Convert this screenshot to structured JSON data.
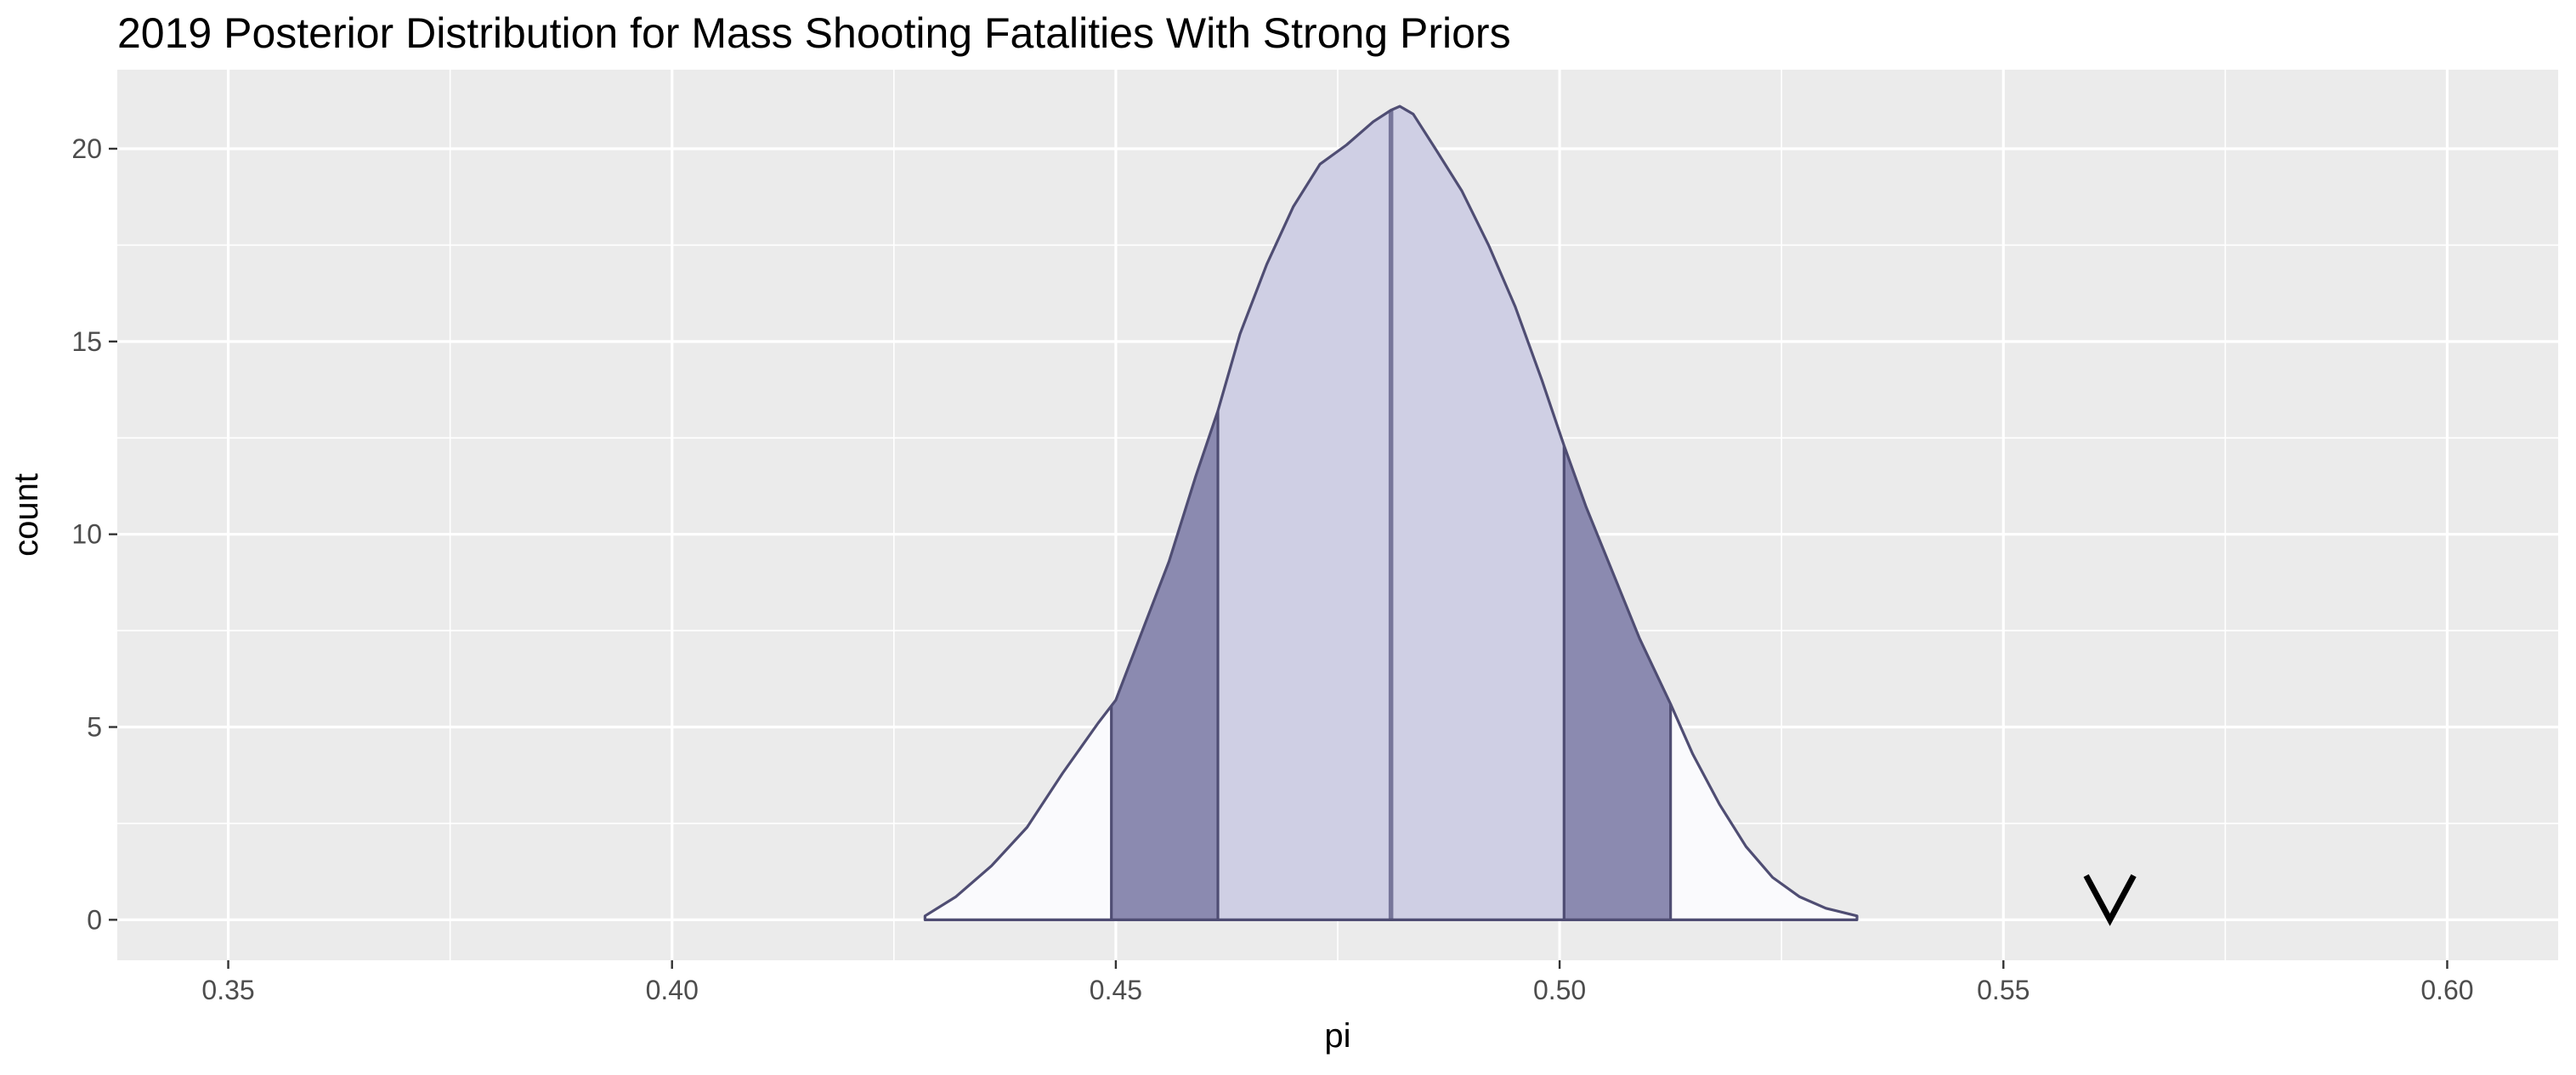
{
  "chart_data": {
    "type": "area",
    "title": "2019 Posterior Distribution for Mass Shooting Fatalities With Strong Priors",
    "xlabel": "pi",
    "ylabel": "count",
    "xlim": [
      0.3375,
      0.6125
    ],
    "ylim": [
      -1.05,
      22.05
    ],
    "x_ticks": [
      0.35,
      0.4,
      0.45,
      0.5,
      0.55,
      0.6
    ],
    "x_tick_labels": [
      "0.35",
      "0.40",
      "0.45",
      "0.50",
      "0.55",
      "0.60"
    ],
    "y_ticks": [
      0,
      5,
      10,
      15,
      20
    ],
    "y_tick_labels": [
      "0",
      "5",
      "10",
      "15",
      "20"
    ],
    "grid": true,
    "density": {
      "x": [
        0.4285,
        0.432,
        0.436,
        0.44,
        0.444,
        0.448,
        0.45,
        0.453,
        0.456,
        0.459,
        0.4615,
        0.464,
        0.467,
        0.47,
        0.473,
        0.476,
        0.479,
        0.481,
        0.482,
        0.4835,
        0.486,
        0.489,
        0.492,
        0.495,
        0.498,
        0.5005,
        0.503,
        0.506,
        0.509,
        0.5125,
        0.515,
        0.518,
        0.521,
        0.524,
        0.527,
        0.53,
        0.5335
      ],
      "y": [
        0.1,
        0.6,
        1.4,
        2.4,
        3.8,
        5.1,
        5.7,
        7.5,
        9.3,
        11.5,
        13.2,
        15.2,
        17.0,
        18.5,
        19.6,
        20.1,
        20.7,
        21.0,
        21.1,
        20.9,
        20.0,
        18.9,
        17.5,
        15.9,
        14.0,
        12.3,
        10.7,
        9.0,
        7.3,
        5.6,
        4.3,
        3.0,
        1.9,
        1.1,
        0.6,
        0.3,
        0.1
      ]
    },
    "bands": [
      {
        "from": 0.4285,
        "to": 0.4495,
        "fill": "#fafafd"
      },
      {
        "from": 0.4495,
        "to": 0.4615,
        "fill": "#8b8ab0"
      },
      {
        "from": 0.4615,
        "to": 0.5005,
        "fill": "#cfcfe4"
      },
      {
        "from": 0.5005,
        "to": 0.5125,
        "fill": "#8b8ab0"
      },
      {
        "from": 0.5125,
        "to": 0.5335,
        "fill": "#fafafd"
      }
    ],
    "median": 0.481,
    "marker": {
      "x": 0.562,
      "y": 0,
      "shape": "v"
    },
    "colors": {
      "panel_bg": "#ebebeb",
      "grid": "#ffffff",
      "outline": "#4f4d73",
      "median_line": "#77769a",
      "marker": "#000000"
    }
  }
}
